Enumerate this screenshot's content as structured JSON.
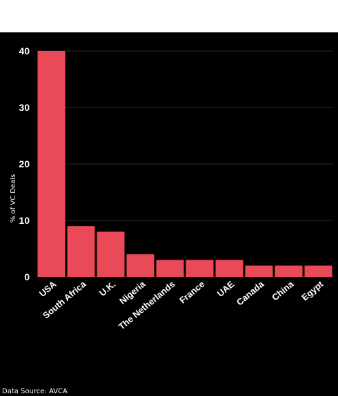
{
  "chart_data": {
    "type": "bar",
    "categories": [
      "USA",
      "South Africa",
      "U.K.",
      "Nigeria",
      "The Netherlands",
      "France",
      "UAE",
      "Canada",
      "China",
      "Egypt"
    ],
    "values": [
      40,
      9,
      8,
      4,
      3,
      3,
      3,
      2,
      2,
      2
    ],
    "ylabel": "% of VC Deals",
    "xlabel": "",
    "ylim": [
      0,
      40
    ],
    "yticks": [
      0,
      10,
      20,
      30,
      40
    ],
    "grid": true,
    "bar_color": "#ea4a58",
    "background": "#000000"
  },
  "footer": {
    "source": "Data Source: AVCA"
  }
}
